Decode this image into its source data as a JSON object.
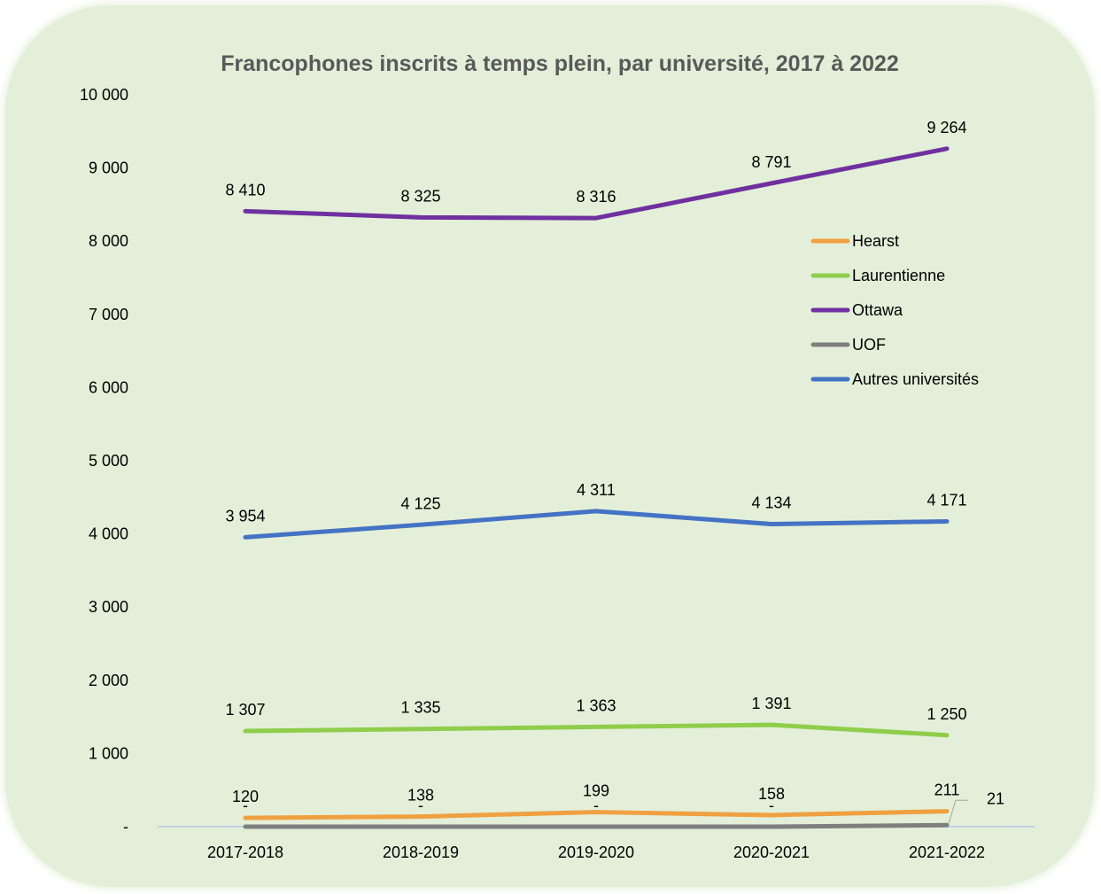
{
  "chart_data": {
    "type": "line",
    "title": "Francophones inscrits à temps plein, par université, 2017 à 2022",
    "categories": [
      "2017-2018",
      "2018-2019",
      "2019-2020",
      "2020-2021",
      "2021-2022"
    ],
    "ylim": [
      0,
      10000
    ],
    "yticks": [
      0,
      1000,
      2000,
      3000,
      4000,
      5000,
      6000,
      7000,
      8000,
      9000,
      10000
    ],
    "ytick_labels": [
      "-",
      "1 000",
      "2 000",
      "3 000",
      "4 000",
      "5 000",
      "6 000",
      "7 000",
      "8 000",
      "9 000",
      "10 000"
    ],
    "grid": false,
    "legend": "right",
    "series": [
      {
        "name": "Hearst",
        "color": "#f0a040",
        "values": [
          120,
          138,
          199,
          158,
          211
        ],
        "labels": [
          "120",
          "138",
          "199",
          "158",
          "211"
        ]
      },
      {
        "name": "Laurentienne",
        "color": "#8fcd4b",
        "values": [
          1307,
          1335,
          1363,
          1391,
          1250
        ],
        "labels": [
          "1 307",
          "1 335",
          "1 363",
          "1 391",
          "1 250"
        ]
      },
      {
        "name": "Ottawa",
        "color": "#7030a0",
        "values": [
          8410,
          8325,
          8316,
          8791,
          9264
        ],
        "labels": [
          "8 410",
          "8 325",
          "8 316",
          "8 791",
          "9 264"
        ]
      },
      {
        "name": "UOF",
        "color": "#7f7f7f",
        "values": [
          0,
          0,
          0,
          0,
          21
        ],
        "labels": [
          "-",
          "-",
          "-",
          "-",
          "21"
        ]
      },
      {
        "name": "Autres universités",
        "color": "#4472c4",
        "values": [
          3954,
          4125,
          4311,
          4134,
          4171
        ],
        "labels": [
          "3 954",
          "4 125",
          "4 311",
          "4 134",
          "4 171"
        ]
      }
    ]
  }
}
